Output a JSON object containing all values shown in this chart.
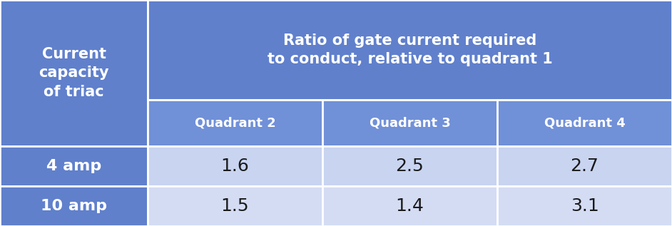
{
  "header_bg": "#6080cc",
  "subheader_bg": "#7090d8",
  "data_bg_even": "#c8d4f0",
  "data_bg_odd": "#d4dcf4",
  "row_header_bg": "#6080cc",
  "border_color": "#ffffff",
  "header_text_color": "#ffffff",
  "data_text_color": "#1a1a1a",
  "col0_label": "Current\ncapacity\nof triac",
  "main_header": "Ratio of gate current required\nto conduct, relative to quadrant 1",
  "sub_headers": [
    "Quadrant 2",
    "Quadrant 3",
    "Quadrant 4"
  ],
  "rows": [
    {
      "label": "4 amp",
      "values": [
        "1.6",
        "2.5",
        "2.7"
      ]
    },
    {
      "label": "10 amp",
      "values": [
        "1.5",
        "1.4",
        "3.1"
      ]
    }
  ],
  "figwidth": 9.42,
  "figheight": 3.17,
  "dpi": 100
}
